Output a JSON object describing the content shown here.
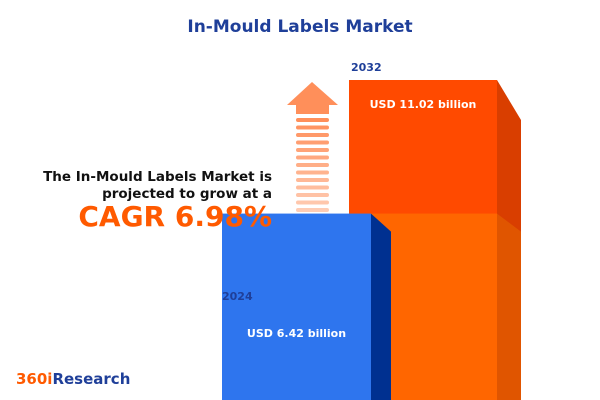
{
  "title": "In-Mould Labels Market",
  "description": {
    "line1": "The In-Mould Labels Market is",
    "line2": "projected to grow at a",
    "cagr": "CAGR 6.98%"
  },
  "logo": {
    "prefix": "360i",
    "suffix": "Research"
  },
  "colors": {
    "bar_2024": "#2e75ee",
    "bar_2032": "#ff4a00",
    "arrow": "#ff8f5a",
    "cagr": "#ff5a00",
    "title": "#1f3f99"
  },
  "chart_data": {
    "type": "bar",
    "title": "In-Mould Labels Market",
    "categories": [
      "2024",
      "2032"
    ],
    "values": [
      6.42,
      11.02
    ],
    "unit": "USD billion",
    "labels": [
      "USD 6.42 billion",
      "USD 11.02 billion"
    ],
    "cagr": "6.98%"
  }
}
